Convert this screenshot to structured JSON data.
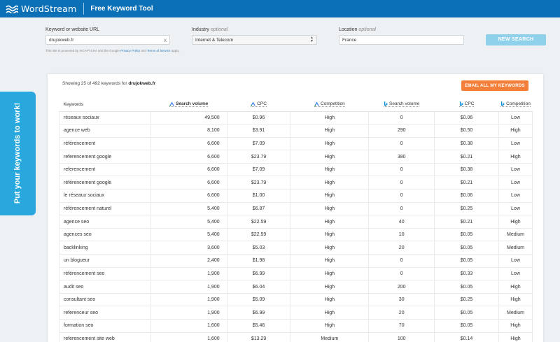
{
  "header": {
    "brand": "WordStream",
    "tool_title": "Free Keyword Tool"
  },
  "form": {
    "keyword_label": "Keyword or website URL",
    "keyword_value": "drujokweb.fr",
    "clear_symbol": "x",
    "industry_label": "Industry",
    "industry_optional": "optional",
    "industry_value": "Internet & Telecom",
    "location_label": "Location",
    "location_optional": "optional",
    "location_value": "France",
    "new_search_label": "NEW SEARCH",
    "captcha_prefix": "This site is protected by reCAPTCHA and the Google",
    "privacy_link": "Privacy Policy",
    "captcha_and": "and",
    "terms_link": "Terms of Service",
    "captcha_suffix": "apply."
  },
  "side_tab": {
    "label": "Put your keywords to work!"
  },
  "results": {
    "summary_prefix": "Showing 25 of 492 keywords for",
    "summary_domain": "drujokweb.fr",
    "email_button": "EMAIL ALL MY KEYWORDS",
    "columns": {
      "keywords": "Keywords",
      "g_volume": "Search volume",
      "g_cpc": "CPC",
      "g_competition": "Competition",
      "b_volume": "Search volume",
      "b_cpc": "CPC",
      "b_competition": "Competition"
    },
    "icons": {
      "google": "google-ads-icon",
      "bing": "bing-icon",
      "google_color": "#4285f4",
      "bing_color": "#0a8bd6"
    },
    "rows": [
      {
        "keyword": "réseaux sociaux",
        "g_volume": "49,500",
        "g_cpc": "$0.96",
        "g_comp": "High",
        "b_volume": "0",
        "b_cpc": "$0.06",
        "b_comp": "Low"
      },
      {
        "keyword": "agence web",
        "g_volume": "8,100",
        "g_cpc": "$3.91",
        "g_comp": "High",
        "b_volume": "290",
        "b_cpc": "$0.50",
        "b_comp": "High"
      },
      {
        "keyword": "référencement",
        "g_volume": "6,600",
        "g_cpc": "$7.09",
        "g_comp": "High",
        "b_volume": "0",
        "b_cpc": "$0.38",
        "b_comp": "Low"
      },
      {
        "keyword": "referencement google",
        "g_volume": "6,600",
        "g_cpc": "$23.79",
        "g_comp": "High",
        "b_volume": "380",
        "b_cpc": "$0.21",
        "b_comp": "High"
      },
      {
        "keyword": "referencement",
        "g_volume": "6,600",
        "g_cpc": "$7.09",
        "g_comp": "High",
        "b_volume": "0",
        "b_cpc": "$0.38",
        "b_comp": "Low"
      },
      {
        "keyword": "référencement google",
        "g_volume": "6,600",
        "g_cpc": "$23.79",
        "g_comp": "High",
        "b_volume": "0",
        "b_cpc": "$0.21",
        "b_comp": "Low"
      },
      {
        "keyword": "le réseaux sociaux",
        "g_volume": "6,600",
        "g_cpc": "$1.00",
        "g_comp": "High",
        "b_volume": "0",
        "b_cpc": "$0.06",
        "b_comp": "Low"
      },
      {
        "keyword": "référencement naturel",
        "g_volume": "5,400",
        "g_cpc": "$6.87",
        "g_comp": "High",
        "b_volume": "0",
        "b_cpc": "$0.25",
        "b_comp": "Low"
      },
      {
        "keyword": "agence seo",
        "g_volume": "5,400",
        "g_cpc": "$22.59",
        "g_comp": "High",
        "b_volume": "40",
        "b_cpc": "$0.21",
        "b_comp": "High"
      },
      {
        "keyword": "agences seo",
        "g_volume": "5,400",
        "g_cpc": "$22.59",
        "g_comp": "High",
        "b_volume": "10",
        "b_cpc": "$0.05",
        "b_comp": "Medium"
      },
      {
        "keyword": "backlinking",
        "g_volume": "3,600",
        "g_cpc": "$5.03",
        "g_comp": "High",
        "b_volume": "20",
        "b_cpc": "$0.05",
        "b_comp": "Medium"
      },
      {
        "keyword": "un blogueur",
        "g_volume": "2,400",
        "g_cpc": "$1.98",
        "g_comp": "High",
        "b_volume": "0",
        "b_cpc": "$0.05",
        "b_comp": "Low"
      },
      {
        "keyword": "référencement seo",
        "g_volume": "1,900",
        "g_cpc": "$6.99",
        "g_comp": "High",
        "b_volume": "0",
        "b_cpc": "$0.33",
        "b_comp": "Low"
      },
      {
        "keyword": "audit seo",
        "g_volume": "1,900",
        "g_cpc": "$6.04",
        "g_comp": "High",
        "b_volume": "200",
        "b_cpc": "$0.05",
        "b_comp": "High"
      },
      {
        "keyword": "consultant seo",
        "g_volume": "1,900",
        "g_cpc": "$5.09",
        "g_comp": "High",
        "b_volume": "30",
        "b_cpc": "$0.25",
        "b_comp": "High"
      },
      {
        "keyword": "referenceur seo",
        "g_volume": "1,900",
        "g_cpc": "$6.99",
        "g_comp": "High",
        "b_volume": "20",
        "b_cpc": "$0.05",
        "b_comp": "Medium"
      },
      {
        "keyword": "formation seo",
        "g_volume": "1,600",
        "g_cpc": "$5.46",
        "g_comp": "High",
        "b_volume": "70",
        "b_cpc": "$0.05",
        "b_comp": "High"
      },
      {
        "keyword": "referencement site web",
        "g_volume": "1,600",
        "g_cpc": "$13.29",
        "g_comp": "Medium",
        "b_volume": "100",
        "b_cpc": "$0.14",
        "b_comp": "High"
      }
    ]
  }
}
